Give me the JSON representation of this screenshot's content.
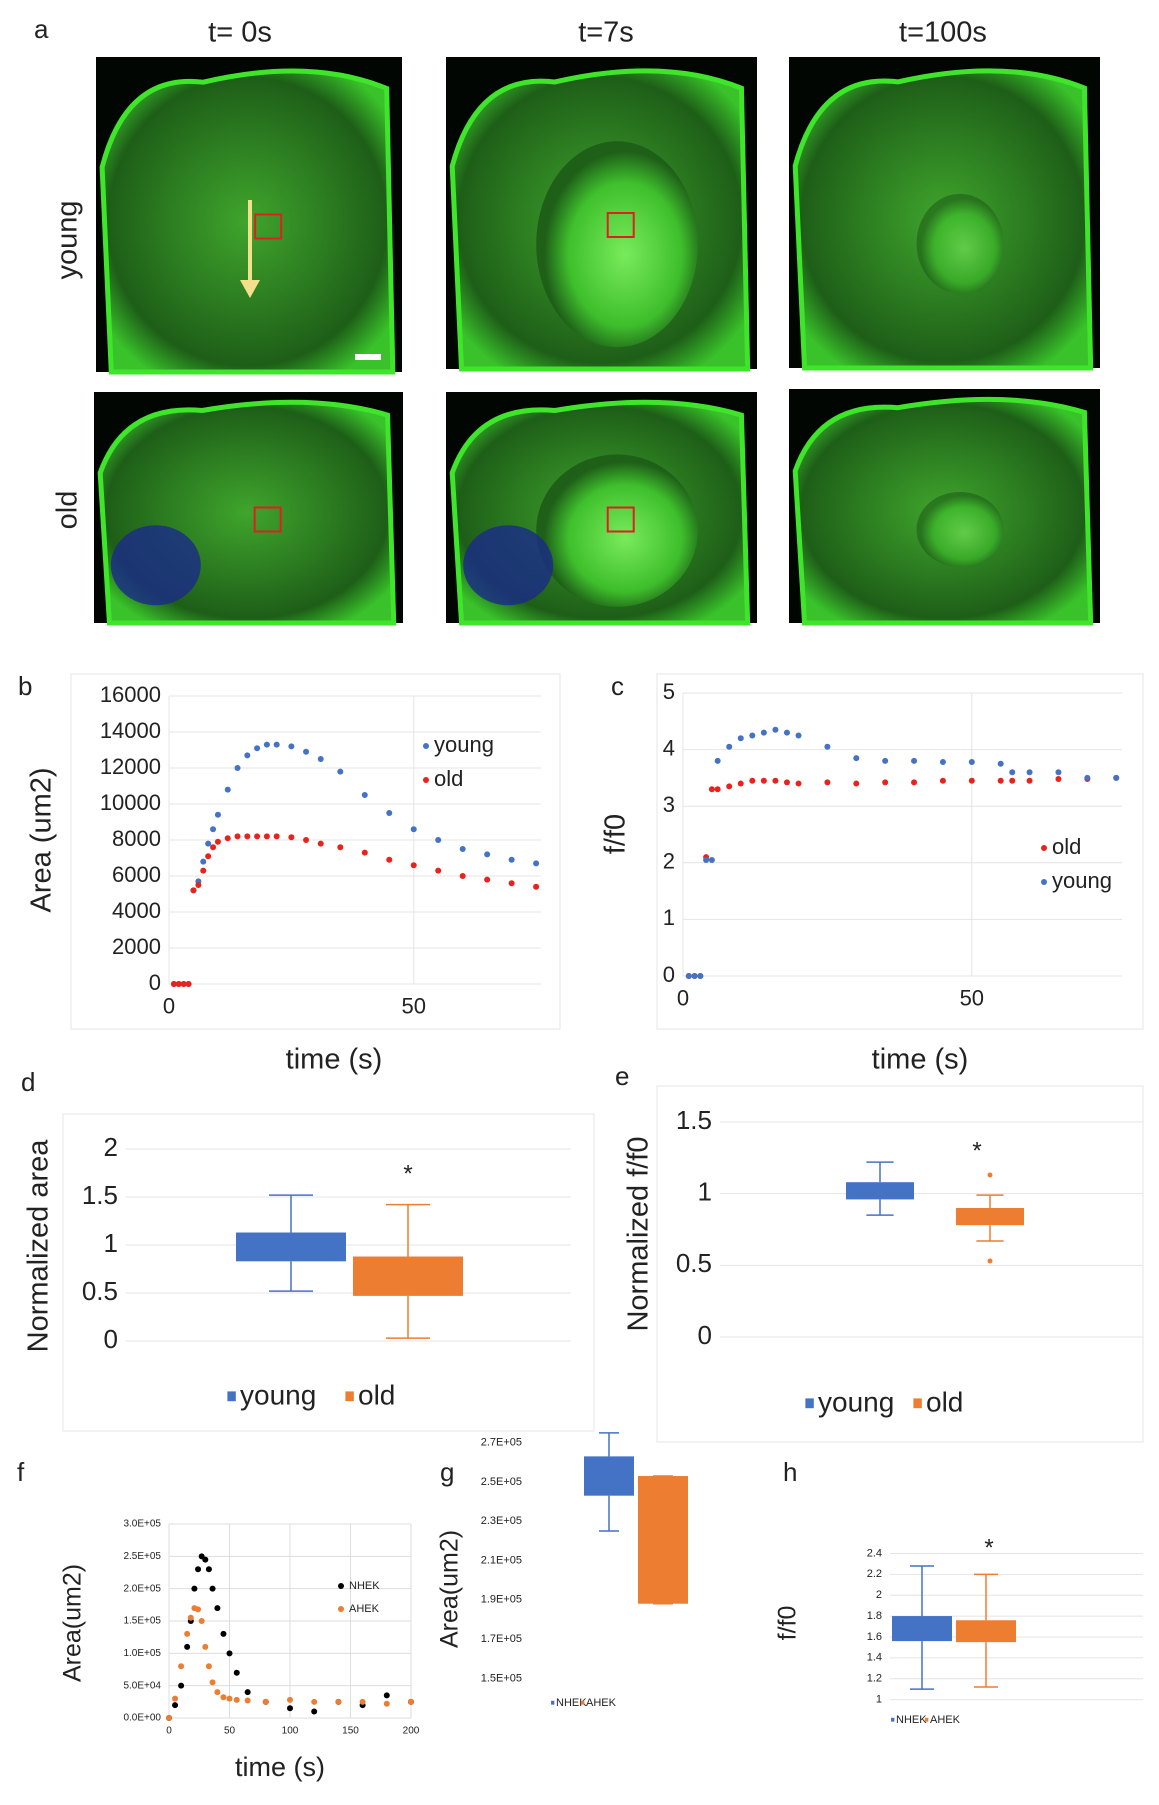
{
  "panel_a": {
    "label": "a",
    "columns": [
      "t= 0s",
      "t=7s",
      "t=100s"
    ],
    "rows": [
      "young",
      "old"
    ]
  },
  "chart_data": [
    {
      "panel": "b",
      "type": "scatter",
      "ylabel": "Area (um2)",
      "xlabel": "time (s)",
      "x": [
        1,
        2,
        3,
        4,
        5,
        6,
        7,
        8,
        9,
        10,
        12,
        14,
        16,
        18,
        20,
        22,
        25,
        28,
        31,
        35,
        40,
        45,
        50,
        55,
        60,
        65,
        70,
        75
      ],
      "xlim": [
        0,
        76
      ],
      "xticks": [
        0,
        50
      ],
      "ylim": [
        0,
        16000
      ],
      "yticks": [
        0,
        2000,
        4000,
        6000,
        8000,
        10000,
        12000,
        14000,
        16000
      ],
      "grid": true,
      "series": [
        {
          "name": "young",
          "color": "#4472c4",
          "values": [
            0,
            0,
            0,
            0,
            5200,
            5700,
            6800,
            7800,
            8600,
            9400,
            10800,
            12000,
            12700,
            13100,
            13300,
            13300,
            13200,
            12900,
            12500,
            11800,
            10500,
            9500,
            8600,
            8000,
            7500,
            7200,
            6900,
            6700
          ]
        },
        {
          "name": "old",
          "color": "#e8231c",
          "values": [
            0,
            0,
            0,
            0,
            5200,
            5500,
            6300,
            7100,
            7600,
            7900,
            8100,
            8200,
            8200,
            8200,
            8200,
            8200,
            8150,
            8000,
            7800,
            7600,
            7300,
            6900,
            6600,
            6300,
            6000,
            5800,
            5600,
            5400
          ]
        }
      ]
    },
    {
      "panel": "c",
      "type": "scatter",
      "ylabel": "f/f0",
      "xlabel": "time (s)",
      "x": [
        1,
        2,
        3,
        4,
        5,
        6,
        8,
        10,
        12,
        14,
        16,
        18,
        20,
        25,
        30,
        35,
        40,
        45,
        50,
        55,
        57,
        60,
        65,
        70,
        75
      ],
      "xlim": [
        0,
        76
      ],
      "xticks": [
        0,
        50
      ],
      "ylim": [
        0,
        5
      ],
      "yticks": [
        0,
        1,
        2,
        3,
        4,
        5
      ],
      "grid": true,
      "series": [
        {
          "name": "old",
          "color": "#e8231c",
          "values": [
            0,
            0,
            0,
            2.1,
            3.3,
            3.3,
            3.35,
            3.4,
            3.45,
            3.45,
            3.45,
            3.42,
            3.4,
            3.42,
            3.4,
            3.42,
            3.42,
            3.45,
            3.45,
            3.45,
            3.45,
            3.45,
            3.48,
            3.48,
            3.5
          ]
        },
        {
          "name": "young",
          "color": "#4472c4",
          "values": [
            0,
            0,
            0,
            2.05,
            2.05,
            3.8,
            4.05,
            4.2,
            4.25,
            4.3,
            4.35,
            4.3,
            4.25,
            4.05,
            3.85,
            3.8,
            3.8,
            3.78,
            3.78,
            3.75,
            3.6,
            3.6,
            3.6,
            3.5,
            3.5
          ]
        }
      ]
    },
    {
      "panel": "d",
      "type": "box",
      "ylabel": "Normalized area",
      "annotation": "*",
      "ylim": [
        0,
        2
      ],
      "yticks": [
        0,
        0.5,
        1,
        1.5,
        2
      ],
      "grid": true,
      "series": [
        {
          "name": "young",
          "color": "#4472c4",
          "min": 0.52,
          "q1": 0.83,
          "q3": 1.13,
          "max": 1.52
        },
        {
          "name": "old",
          "color": "#ed7d31",
          "min": 0.03,
          "q1": 0.47,
          "q3": 0.88,
          "max": 1.42
        }
      ]
    },
    {
      "panel": "e",
      "type": "box",
      "ylabel": "Normalized f/f0",
      "annotation": "*",
      "ylim": [
        0,
        1.5
      ],
      "yticks": [
        0,
        0.5,
        1,
        1.5
      ],
      "grid": true,
      "series": [
        {
          "name": "young",
          "color": "#4472c4",
          "min": 0.85,
          "q1": 0.96,
          "q3": 1.08,
          "max": 1.22
        },
        {
          "name": "old",
          "color": "#ed7d31",
          "min": 0.67,
          "q1": 0.78,
          "q3": 0.9,
          "max": 0.99,
          "outliers": [
            1.13,
            0.53
          ]
        }
      ]
    },
    {
      "panel": "f",
      "type": "scatter",
      "ylabel": "Area(um2)",
      "xlabel": "time (s)",
      "x": [
        0,
        5,
        10,
        15,
        18,
        21,
        24,
        27,
        30,
        33,
        36,
        40,
        45,
        50,
        56,
        65,
        80,
        100,
        120,
        140,
        160,
        180,
        200
      ],
      "xlim": [
        0,
        200
      ],
      "xticks": [
        0,
        50,
        100,
        150,
        200
      ],
      "ylim": [
        0,
        300000
      ],
      "yticks": [
        {
          "value": 0,
          "label": "0.0E+00"
        },
        {
          "value": 50000,
          "label": "5.0E+04"
        },
        {
          "value": 100000,
          "label": "1.0E+05"
        },
        {
          "value": 150000,
          "label": "1.5E+05"
        },
        {
          "value": 200000,
          "label": "2.0E+05"
        },
        {
          "value": 250000,
          "label": "2.5E+05"
        },
        {
          "value": 300000,
          "label": "3.0E+05"
        }
      ],
      "grid": true,
      "series": [
        {
          "name": "NHEK",
          "color": "#000000",
          "values": [
            0,
            20000,
            50000,
            110000,
            150000,
            200000,
            230000,
            250000,
            245000,
            230000,
            200000,
            170000,
            130000,
            100000,
            70000,
            40000,
            25000,
            15000,
            10000,
            25000,
            20000,
            35000,
            25000
          ]
        },
        {
          "name": "AHEK",
          "color": "#ed7d31",
          "values": [
            0,
            30000,
            80000,
            130000,
            155000,
            170000,
            168000,
            150000,
            110000,
            80000,
            55000,
            40000,
            32000,
            30000,
            28000,
            27000,
            25000,
            28000,
            25000,
            25000,
            25000,
            22000,
            25000
          ]
        }
      ]
    },
    {
      "panel": "g",
      "type": "box",
      "ylabel": "Area(um2)",
      "annotation": "*",
      "ylim": [
        140000,
        280000
      ],
      "yticks": [
        {
          "value": 150000,
          "label": "1.5E+05"
        },
        {
          "value": 170000,
          "label": "1.7E+05"
        },
        {
          "value": 190000,
          "label": "1.9E+05"
        },
        {
          "value": 210000,
          "label": "2.1E+05"
        },
        {
          "value": 230000,
          "label": "2.3E+05"
        },
        {
          "value": 250000,
          "label": "2.5E+05"
        },
        {
          "value": 270000,
          "label": "2.7E+05"
        }
      ],
      "grid": false,
      "series": [
        {
          "name": "NHEK",
          "color": "#4472c4",
          "min": 225000,
          "q1": 243000,
          "q3": 263000,
          "max": 275000
        },
        {
          "name": "AHEK",
          "color": "#ed7d31",
          "min": 188000,
          "q1": 188000,
          "q3": 253000,
          "max": 253000
        }
      ]
    },
    {
      "panel": "h",
      "type": "box",
      "ylabel": "f/f0",
      "annotation": "*",
      "ylim": [
        0.9,
        2.5
      ],
      "yticks": [
        1,
        1.2,
        1.4,
        1.6,
        1.8,
        2,
        2.2,
        2.4
      ],
      "grid": true,
      "series": [
        {
          "name": "NHEK",
          "color": "#4472c4",
          "min": 1.1,
          "q1": 1.56,
          "q3": 1.8,
          "max": 2.28
        },
        {
          "name": "AHEK",
          "color": "#ed7d31",
          "min": 1.12,
          "q1": 1.55,
          "q3": 1.76,
          "max": 2.2
        }
      ]
    }
  ]
}
